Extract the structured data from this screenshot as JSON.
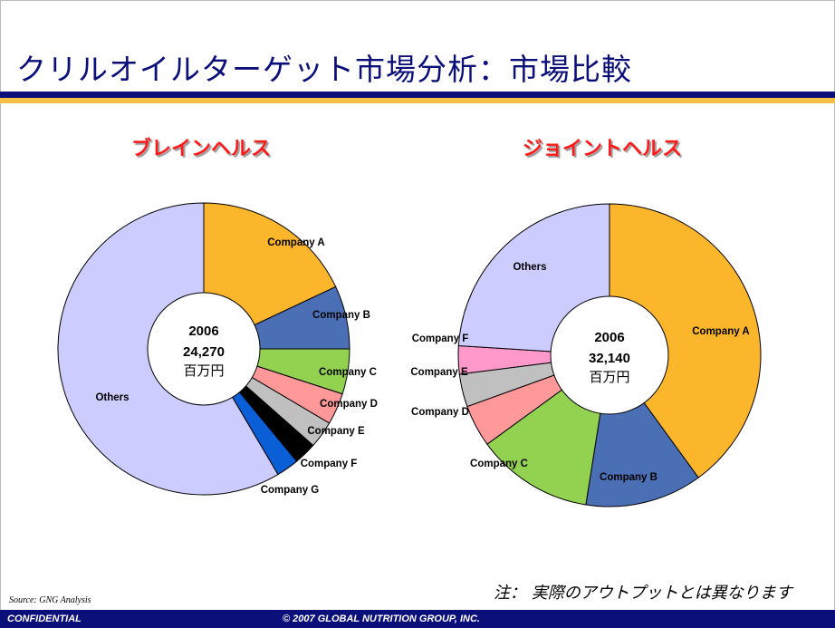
{
  "slide": {
    "title": "クリルオイルターゲット市場分析：市場比較",
    "note": "注：  実際のアウトプットとは異なります",
    "source": "Source: GNG Analysis",
    "footer_left": "CONFIDENTIAL",
    "footer_center": "© 2007 GLOBAL NUTRITION GROUP, INC."
  },
  "colors": {
    "navy": "#0b0f7a",
    "gold": "#f7c045",
    "title_red": "#ff1a1a"
  },
  "chart_data": [
    {
      "type": "pie",
      "title": "ブレインヘルス",
      "center_label": {
        "year": "2006",
        "value": "24,270",
        "unit": "百万円"
      },
      "slices": [
        {
          "name": "Company A",
          "value": 18,
          "color": "#fbb62b"
        },
        {
          "name": "Company B",
          "value": 7,
          "color": "#4a6fb5"
        },
        {
          "name": "Company C",
          "value": 5,
          "color": "#93d150"
        },
        {
          "name": "Company D",
          "value": 3.5,
          "color": "#ff9999"
        },
        {
          "name": "Company E",
          "value": 3,
          "color": "#c0c0c0"
        },
        {
          "name": "Company F",
          "value": 2.5,
          "color": "#000000"
        },
        {
          "name": "Company G",
          "value": 2.5,
          "color": "#0a5fd6"
        },
        {
          "name": "Others",
          "value": 58.5,
          "color": "#ccccff"
        }
      ]
    },
    {
      "type": "pie",
      "title": "ジョイントヘルス",
      "center_label": {
        "year": "2006",
        "value": "32,140",
        "unit": "百万円"
      },
      "slices": [
        {
          "name": "Company A",
          "value": 40,
          "color": "#fbb62b"
        },
        {
          "name": "Company B",
          "value": 12.5,
          "color": "#4a6fb5"
        },
        {
          "name": "Company C",
          "value": 12.5,
          "color": "#93d150"
        },
        {
          "name": "Company D",
          "value": 4.5,
          "color": "#ff9999"
        },
        {
          "name": "Company E",
          "value": 3.5,
          "color": "#c0c0c0"
        },
        {
          "name": "Company F",
          "value": 3,
          "color": "#ff99cc"
        },
        {
          "name": "Others",
          "value": 24,
          "color": "#ccccff"
        }
      ]
    }
  ]
}
